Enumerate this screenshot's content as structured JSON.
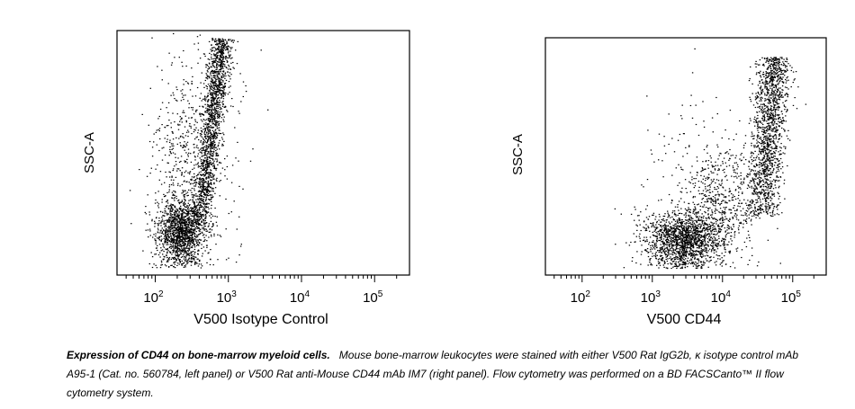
{
  "chart_data": [
    {
      "type": "scatter",
      "panel": "left",
      "title": "",
      "xlabel": "V500 Isotype Control",
      "ylabel": "SSC-A",
      "x_scale": "log",
      "xlim": [
        30,
        300000
      ],
      "x_ticks": [
        {
          "value": 100,
          "base": "10",
          "exp": "2"
        },
        {
          "value": 1000,
          "base": "10",
          "exp": "3"
        },
        {
          "value": 10000,
          "base": "10",
          "exp": "4"
        },
        {
          "value": 100000,
          "base": "10",
          "exp": "5"
        }
      ],
      "ylim": [
        0,
        100
      ],
      "grid": false,
      "populations": [
        {
          "name": "",
          "x_log_center": 2.35,
          "x_log_sd": 0.17,
          "y_center": 18,
          "y_sd": 7,
          "n": 1400
        },
        {
          "name": "",
          "x_log_center": 2.6,
          "x_log_sd": 0.08,
          "y_from": 20,
          "y_to": 97,
          "slope": 0.004,
          "n": 1600
        },
        {
          "name": "",
          "x_log_center": 2.4,
          "x_log_sd": 0.22,
          "y_center": 45,
          "y_sd": 22,
          "n": 500
        },
        {
          "name": "",
          "x_log_center": 3.0,
          "x_log_sd": 0.25,
          "y_center": 50,
          "y_sd": 25,
          "n": 60
        }
      ]
    },
    {
      "type": "scatter",
      "panel": "right",
      "title": "",
      "xlabel": "V500 CD44",
      "ylabel": "SSC-A",
      "x_scale": "log",
      "xlim": [
        30,
        300000
      ],
      "x_ticks": [
        {
          "value": 100,
          "base": "10",
          "exp": "2"
        },
        {
          "value": 1000,
          "base": "10",
          "exp": "3"
        },
        {
          "value": 10000,
          "base": "10",
          "exp": "4"
        },
        {
          "value": 100000,
          "base": "10",
          "exp": "5"
        }
      ],
      "ylim": [
        0,
        100
      ],
      "grid": false,
      "populations": [
        {
          "name": "",
          "x_log_center": 3.45,
          "x_log_sd": 0.28,
          "y_center": 15,
          "y_sd": 6,
          "n": 1600
        },
        {
          "name": "",
          "x_log_center": 4.55,
          "x_log_sd": 0.12,
          "y_from": 25,
          "y_to": 92,
          "slope": 0.003,
          "n": 1500
        },
        {
          "name": "",
          "x_log_center": 4.0,
          "x_log_sd": 0.25,
          "y_center": 32,
          "y_sd": 12,
          "n": 500
        },
        {
          "name": "",
          "x_log_center": 3.6,
          "x_log_sd": 0.45,
          "y_center": 45,
          "y_sd": 22,
          "n": 140
        }
      ]
    }
  ],
  "caption": {
    "lead": "Expression of CD44 on bone-marrow myeloid cells.",
    "body_before_kappa": "Mouse bone-marrow leukocytes were stained with either V500 Rat IgG2b, ",
    "kappa": "κ",
    "body_after_kappa": " isotype control mAb A95-1 (Cat. no. 560784, left panel) or V500 Rat anti-Mouse CD44 mAb IM7 (right panel). Flow cytometry was performed on a BD FACSCanto™ II flow cytometry system."
  },
  "colors": {
    "dots": "#000000",
    "frame": "#000000",
    "background": "#ffffff"
  }
}
